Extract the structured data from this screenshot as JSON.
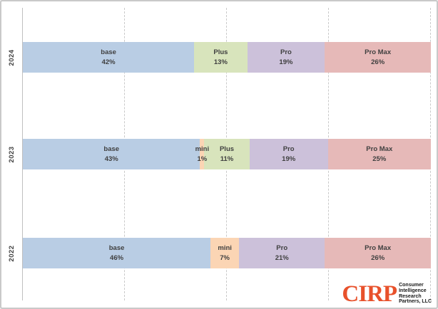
{
  "chart_data": {
    "type": "bar",
    "variant": "100pct-stacked-horizontal",
    "title": "",
    "unit": "%",
    "categories": [
      "2024",
      "2023",
      "2022"
    ],
    "rows": [
      {
        "year": "2024",
        "segments": [
          {
            "name": "base",
            "value": 42
          },
          {
            "name": "Plus",
            "value": 13
          },
          {
            "name": "Pro",
            "value": 19
          },
          {
            "name": "Pro Max",
            "value": 26
          }
        ]
      },
      {
        "year": "2023",
        "segments": [
          {
            "name": "base",
            "value": 43
          },
          {
            "name": "mini",
            "value": 1
          },
          {
            "name": "Plus",
            "value": 11
          },
          {
            "name": "Pro",
            "value": 19
          },
          {
            "name": "Pro Max",
            "value": 25
          }
        ]
      },
      {
        "year": "2022",
        "segments": [
          {
            "name": "base",
            "value": 46
          },
          {
            "name": "mini",
            "value": 7
          },
          {
            "name": "Pro",
            "value": 21
          },
          {
            "name": "Pro Max",
            "value": 26
          }
        ]
      }
    ],
    "segment_colors": {
      "base": "#B9CDE4",
      "mini": "#FBD5B4",
      "Plus": "#D8E4BC",
      "Pro": "#CCC1DA",
      "Pro Max": "#E6B9B8"
    },
    "axis": {
      "x_min": 0,
      "x_max": 100,
      "gridlines_pct": [
        25,
        50,
        75,
        100
      ],
      "grid_style": "dashed"
    }
  },
  "logo": {
    "acronym": "CIRP",
    "company_lines": [
      "Consumer",
      "Intelligence",
      "Research",
      "Partners, LLC"
    ],
    "accent_color": "#E8512B"
  }
}
